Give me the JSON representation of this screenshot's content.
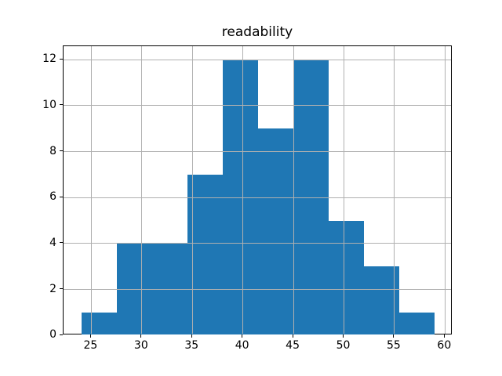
{
  "chart_data": {
    "type": "histogram",
    "title": "readability",
    "xlabel": "",
    "ylabel": "",
    "bin_edges": [
      24,
      27.5,
      31,
      34.5,
      38,
      41.5,
      45,
      48.5,
      52,
      55.5,
      59
    ],
    "counts": [
      1,
      4,
      4,
      7,
      12,
      9,
      12,
      5,
      3,
      1
    ],
    "xlim": [
      22.25,
      60.75
    ],
    "ylim": [
      0,
      12.6
    ],
    "xticks": [
      25,
      30,
      35,
      40,
      45,
      50,
      55,
      60
    ],
    "yticks": [
      0,
      2,
      4,
      6,
      8,
      10,
      12
    ],
    "grid": true,
    "legend": false,
    "bar_color": "#1f77b4",
    "grid_color": "#b0b0b0",
    "axis_color": "#000000",
    "background_color": "#ffffff"
  }
}
